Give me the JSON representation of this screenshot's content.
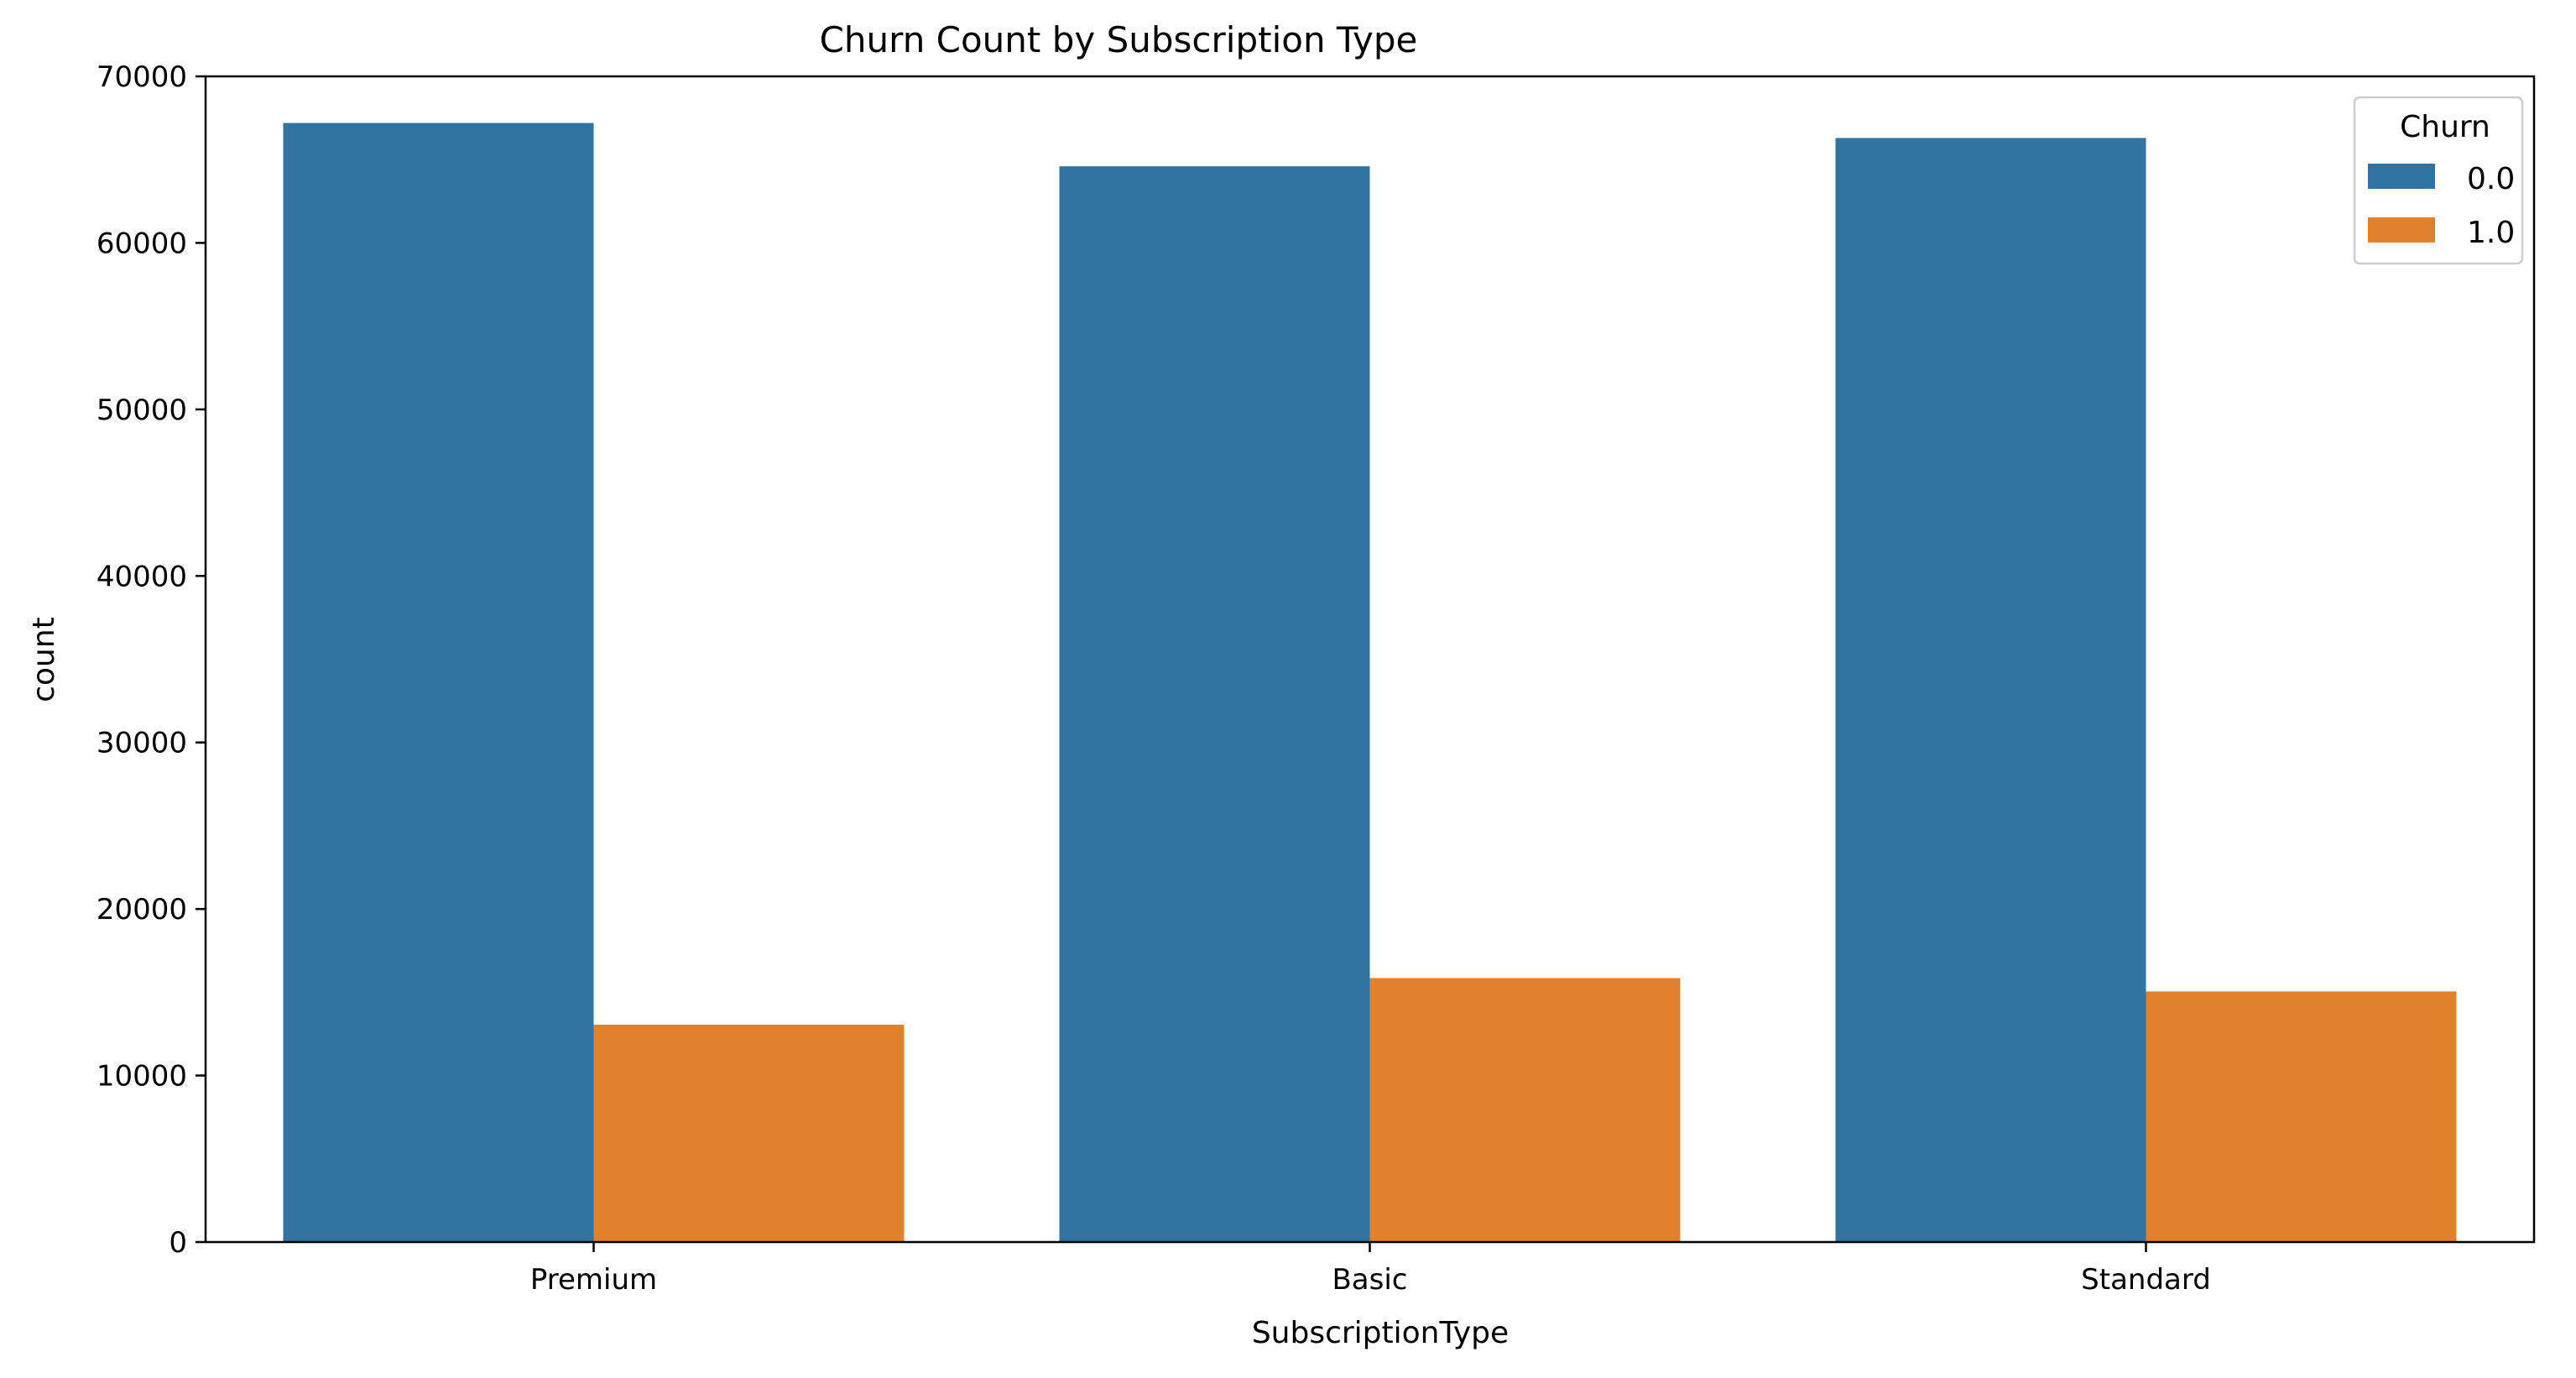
{
  "chart_data": {
    "type": "bar",
    "title": "Churn Count by Subscription Type",
    "xlabel": "SubscriptionType",
    "ylabel": "count",
    "categories": [
      "Premium",
      "Basic",
      "Standard"
    ],
    "series": [
      {
        "name": "0.0",
        "color": "#3274a1",
        "values": [
          67200,
          64600,
          66300
        ]
      },
      {
        "name": "1.0",
        "color": "#e1812c",
        "values": [
          13050,
          15850,
          15050
        ]
      }
    ],
    "ylim": [
      0,
      70000
    ],
    "yticks": [
      0,
      10000,
      20000,
      30000,
      40000,
      50000,
      60000,
      70000
    ],
    "ytick_labels": [
      "0",
      "10000",
      "20000",
      "30000",
      "40000",
      "50000",
      "60000",
      "70000"
    ],
    "legend": {
      "title": "Churn",
      "position": "top-right"
    },
    "grid": false
  }
}
